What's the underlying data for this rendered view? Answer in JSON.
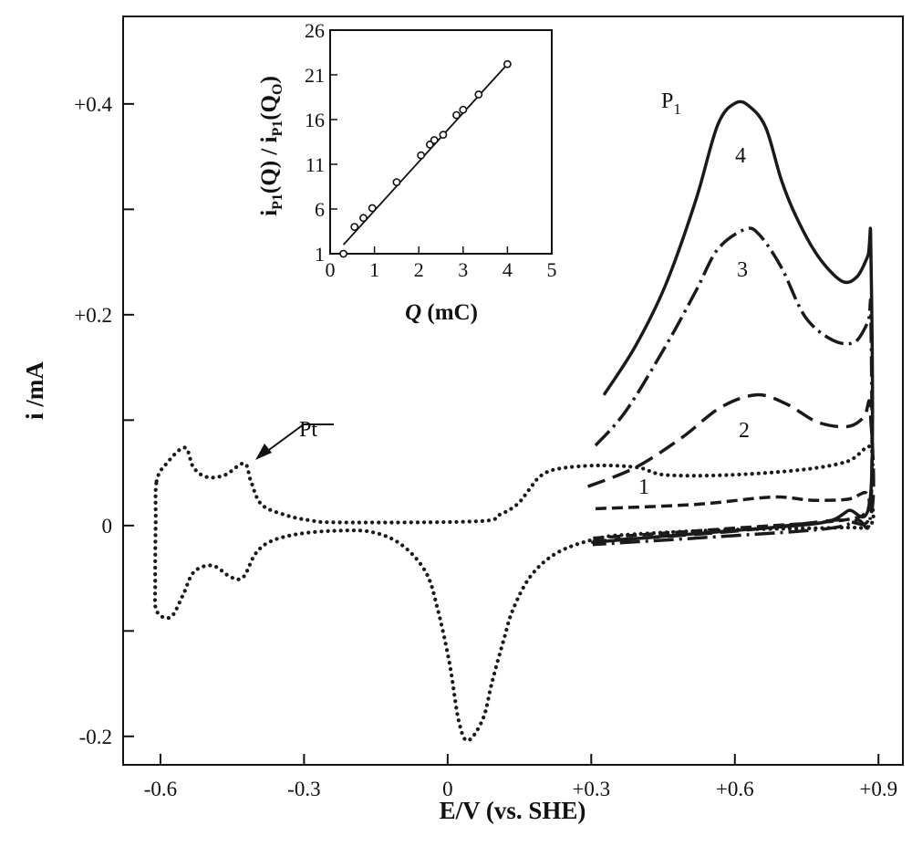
{
  "chart_data": [
    {
      "type": "line",
      "title": "",
      "xlabel": "E/V (vs. SHE)",
      "ylabel": "i /mA",
      "xlim": [
        -0.678,
        0.951
      ],
      "ylim": [
        -0.227,
        0.483
      ],
      "grid": false,
      "xticks": [
        {
          "v": -0.6,
          "label": "-0.6"
        },
        {
          "v": -0.3,
          "label": "-0.3"
        },
        {
          "v": 0,
          "label": "0"
        },
        {
          "v": 0.3,
          "label": "+0.3"
        },
        {
          "v": 0.6,
          "label": "+0.6"
        },
        {
          "v": 0.9,
          "label": "+0.9"
        }
      ],
      "yticks": [
        {
          "v": -0.2,
          "label": "-0.2"
        },
        {
          "v": -0.1,
          "label": ""
        },
        {
          "v": 0,
          "label": "0"
        },
        {
          "v": 0.1,
          "label": ""
        },
        {
          "v": 0.2,
          "label": "+0.2"
        },
        {
          "v": 0.3,
          "label": ""
        },
        {
          "v": 0.4,
          "label": "+0.4"
        }
      ],
      "annotations": {
        "pt": "Pt",
        "p1": "P",
        "p1_sub": "1",
        "c1": "1",
        "c2": "2",
        "c3": "3",
        "c4": "4"
      },
      "series": [
        {
          "name": "Pt",
          "style": "dotted",
          "closed": true,
          "points": [
            [
              -0.608,
              0.042
            ],
            [
              -0.587,
              0.059
            ],
            [
              -0.549,
              0.074
            ],
            [
              -0.531,
              0.055
            ],
            [
              -0.503,
              0.046
            ],
            [
              -0.465,
              0.048
            ],
            [
              -0.425,
              0.059
            ],
            [
              -0.411,
              0.042
            ],
            [
              -0.389,
              0.02
            ],
            [
              -0.339,
              0.01
            ],
            [
              -0.288,
              0.005
            ],
            [
              -0.225,
              0.003
            ],
            [
              0.061,
              0.004
            ],
            [
              0.107,
              0.01
            ],
            [
              0.145,
              0.02
            ],
            [
              0.17,
              0.034
            ],
            [
              0.194,
              0.047
            ],
            [
              0.232,
              0.054
            ],
            [
              0.316,
              0.057
            ],
            [
              0.398,
              0.055
            ],
            [
              0.455,
              0.048
            ],
            [
              0.589,
              0.048
            ],
            [
              0.741,
              0.053
            ],
            [
              0.836,
              0.061
            ],
            [
              0.884,
              0.074
            ],
            [
              0.885,
              0.03
            ],
            [
              0.884,
              0.001
            ],
            [
              0.817,
              -0.002
            ],
            [
              0.589,
              -0.004
            ],
            [
              0.398,
              -0.008
            ],
            [
              0.316,
              -0.012
            ],
            [
              0.232,
              -0.025
            ],
            [
              0.175,
              -0.047
            ],
            [
              0.137,
              -0.079
            ],
            [
              0.118,
              -0.107
            ],
            [
              0.093,
              -0.148
            ],
            [
              0.074,
              -0.183
            ],
            [
              0.042,
              -0.204
            ],
            [
              0.023,
              -0.185
            ],
            [
              0.004,
              -0.131
            ],
            [
              -0.021,
              -0.079
            ],
            [
              -0.046,
              -0.044
            ],
            [
              -0.097,
              -0.018
            ],
            [
              -0.16,
              -0.006
            ],
            [
              -0.236,
              -0.005
            ],
            [
              -0.312,
              -0.008
            ],
            [
              -0.37,
              -0.015
            ],
            [
              -0.402,
              -0.027
            ],
            [
              -0.427,
              -0.049
            ],
            [
              -0.453,
              -0.049
            ],
            [
              -0.491,
              -0.038
            ],
            [
              -0.53,
              -0.044
            ],
            [
              -0.554,
              -0.067
            ],
            [
              -0.579,
              -0.087
            ],
            [
              -0.608,
              -0.081
            ],
            [
              -0.611,
              -0.055
            ],
            [
              -0.61,
              0.003
            ]
          ]
        },
        {
          "name": "1",
          "style": "dashed-short",
          "closed": false,
          "points": [
            [
              0.309,
              0.016
            ],
            [
              0.518,
              0.02
            ],
            [
              0.678,
              0.027
            ],
            [
              0.76,
              0.024
            ],
            [
              0.836,
              0.025
            ],
            [
              0.874,
              0.031
            ],
            [
              0.876,
              0.014
            ],
            [
              0.823,
              0.005
            ],
            [
              0.583,
              -0.003
            ],
            [
              0.303,
              -0.012
            ]
          ]
        },
        {
          "name": "2",
          "style": "dashed-long",
          "closed": false,
          "points": [
            [
              0.293,
              0.037
            ],
            [
              0.392,
              0.055
            ],
            [
              0.488,
              0.083
            ],
            [
              0.57,
              0.112
            ],
            [
              0.646,
              0.124
            ],
            [
              0.709,
              0.115
            ],
            [
              0.773,
              0.098
            ],
            [
              0.836,
              0.094
            ],
            [
              0.87,
              0.103
            ],
            [
              0.882,
              0.113
            ],
            [
              0.884,
              0.01
            ],
            [
              0.804,
              0.005
            ],
            [
              0.583,
              -0.006
            ],
            [
              0.303,
              -0.015
            ]
          ]
        },
        {
          "name": "3",
          "style": "dash-dot",
          "closed": false,
          "points": [
            [
              0.309,
              0.076
            ],
            [
              0.373,
              0.109
            ],
            [
              0.455,
              0.17
            ],
            [
              0.518,
              0.222
            ],
            [
              0.564,
              0.262
            ],
            [
              0.621,
              0.281
            ],
            [
              0.651,
              0.276
            ],
            [
              0.697,
              0.245
            ],
            [
              0.747,
              0.198
            ],
            [
              0.804,
              0.176
            ],
            [
              0.85,
              0.174
            ],
            [
              0.878,
              0.193
            ],
            [
              0.884,
              0.202
            ],
            [
              0.884,
              0.014
            ],
            [
              0.855,
              0.005
            ],
            [
              0.792,
              -0.003
            ],
            [
              0.583,
              -0.01
            ],
            [
              0.303,
              -0.018
            ]
          ]
        },
        {
          "name": "4",
          "style": "solid",
          "closed": false,
          "points": [
            [
              0.328,
              0.125
            ],
            [
              0.392,
              0.17
            ],
            [
              0.455,
              0.228
            ],
            [
              0.518,
              0.308
            ],
            [
              0.564,
              0.38
            ],
            [
              0.602,
              0.401
            ],
            [
              0.632,
              0.397
            ],
            [
              0.665,
              0.377
            ],
            [
              0.697,
              0.328
            ],
            [
              0.728,
              0.293
            ],
            [
              0.773,
              0.256
            ],
            [
              0.823,
              0.232
            ],
            [
              0.855,
              0.236
            ],
            [
              0.878,
              0.256
            ],
            [
              0.884,
              0.267
            ],
            [
              0.884,
              0.031
            ],
            [
              0.836,
              0.014
            ],
            [
              0.785,
              0.003
            ],
            [
              0.646,
              -0.003
            ],
            [
              0.455,
              -0.01
            ],
            [
              0.303,
              -0.016
            ]
          ]
        }
      ]
    },
    {
      "type": "scatter",
      "title": "",
      "xlabel": {
        "q": "Q",
        "rest": " (mC)"
      },
      "ylabel": {
        "i1": "i",
        "sub1": "P1",
        "q1": "(Q)",
        "slash": " / ",
        "i2": "i",
        "sub2": "P1",
        "q2": "(Q",
        "q2sub": "O",
        "close": ")"
      },
      "xlim": [
        0,
        5
      ],
      "ylim": [
        1,
        26
      ],
      "xticks": [
        {
          "v": 0,
          "label": "0"
        },
        {
          "v": 1,
          "label": "1"
        },
        {
          "v": 2,
          "label": "2"
        },
        {
          "v": 3,
          "label": "3"
        },
        {
          "v": 4,
          "label": "4"
        },
        {
          "v": 5,
          "label": "5"
        }
      ],
      "yticks": [
        {
          "v": 1,
          "label": "1"
        },
        {
          "v": 6,
          "label": "6"
        },
        {
          "v": 11,
          "label": "11"
        },
        {
          "v": 16,
          "label": "16"
        },
        {
          "v": 21,
          "label": "21"
        },
        {
          "v": 26,
          "label": "26"
        }
      ],
      "x": [
        0.3,
        0.55,
        0.75,
        0.95,
        1.5,
        2.05,
        2.25,
        2.35,
        2.55,
        2.85,
        3.0,
        3.35,
        4.0
      ],
      "y": [
        1.0,
        4.0,
        5.0,
        6.1,
        9.0,
        12.0,
        13.2,
        13.7,
        14.3,
        16.5,
        17.1,
        18.8,
        22.2
      ],
      "fit_line": [
        [
          0.3,
          2.0
        ],
        [
          4.0,
          22.2
        ]
      ]
    }
  ]
}
